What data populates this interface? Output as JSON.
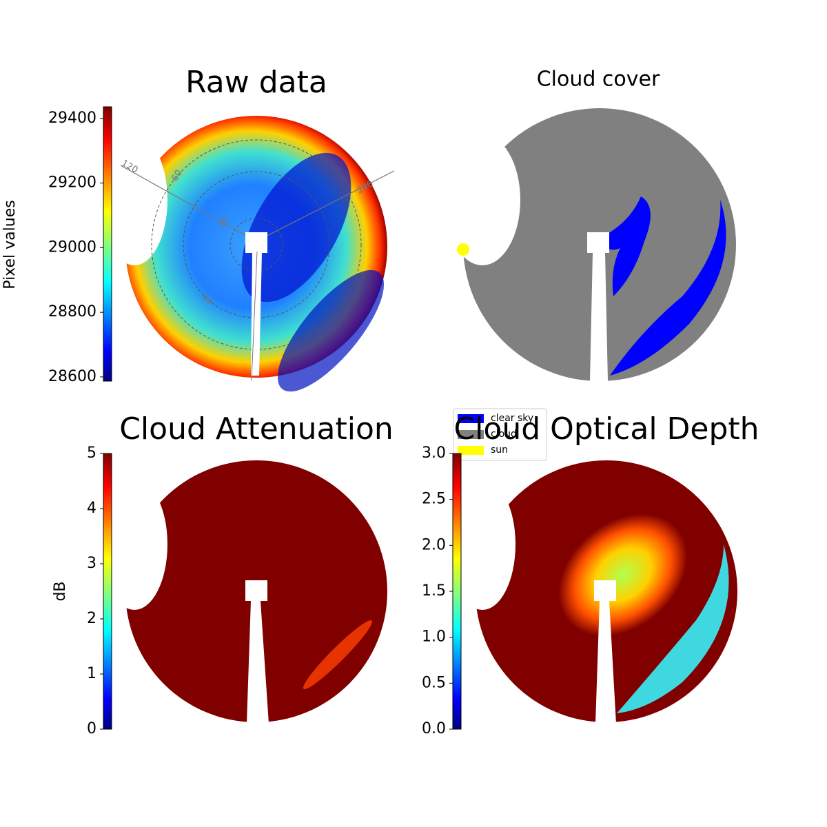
{
  "chart_data": [
    {
      "type": "image",
      "title": "Raw data",
      "colorbar": {
        "label": "Pixel values",
        "colormap": "jet",
        "lim": [
          28587,
          29436
        ],
        "ticks": [
          28600,
          28800,
          29000,
          29200,
          29400
        ]
      },
      "polar_labels": [
        "120",
        "60",
        "20",
        "40",
        "240"
      ]
    },
    {
      "type": "image",
      "title": "Cloud cover",
      "legend": [
        {
          "name": "clear sky",
          "color": "#0000ff"
        },
        {
          "name": "cloud",
          "color": "#808080"
        },
        {
          "name": "sun",
          "color": "#ffff00"
        }
      ]
    },
    {
      "type": "image",
      "title": "Cloud Attenuation",
      "colorbar": {
        "label": "dB",
        "colormap": "jet",
        "lim": [
          0,
          5
        ],
        "ticks": [
          0,
          1,
          2,
          3,
          4,
          5
        ]
      }
    },
    {
      "type": "image",
      "title": "Cloud Optical Depth",
      "colorbar": {
        "colormap": "jet",
        "lim": [
          0,
          3
        ],
        "ticks": [
          {
            "value": 0,
            "label": "0.0"
          },
          0.5,
          {
            "value": 1,
            "label": "1.0"
          },
          1.5,
          {
            "value": 2,
            "label": "2.0"
          },
          2.5,
          {
            "value": 3,
            "label": "3.0"
          }
        ]
      }
    }
  ]
}
